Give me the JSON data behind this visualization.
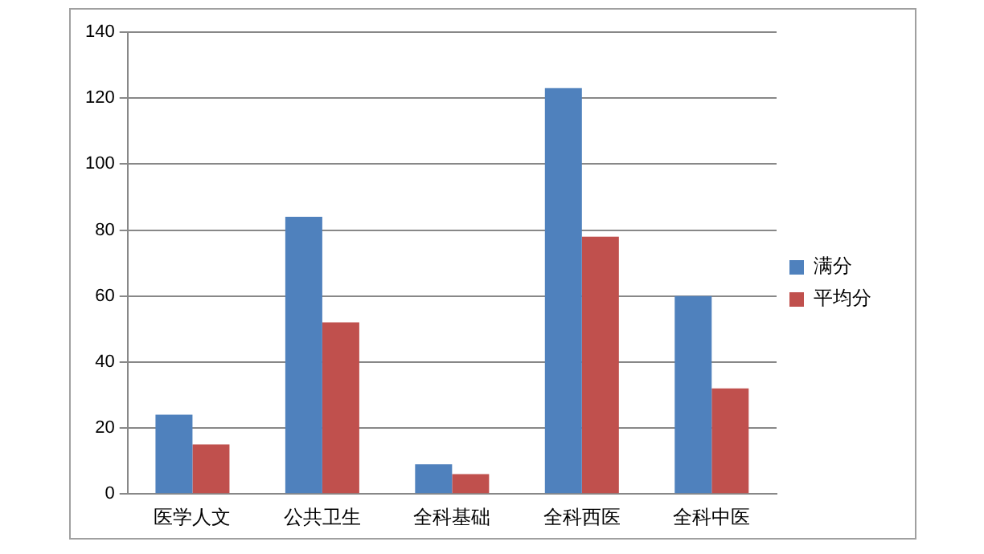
{
  "chart_data": {
    "type": "bar",
    "categories": [
      "医学人文",
      "公共卫生",
      "全科基础",
      "全科西医",
      "全科中医"
    ],
    "series": [
      {
        "name": "满分",
        "color": "#4f81bd",
        "values": [
          24,
          84,
          9,
          123,
          60
        ]
      },
      {
        "name": "平均分",
        "color": "#c0504d",
        "values": [
          15,
          52,
          6,
          78,
          32
        ]
      }
    ],
    "ylim": [
      0,
      140
    ],
    "yticks": [
      0,
      20,
      40,
      60,
      80,
      100,
      120,
      140
    ],
    "grid": "y",
    "legend": "right"
  }
}
